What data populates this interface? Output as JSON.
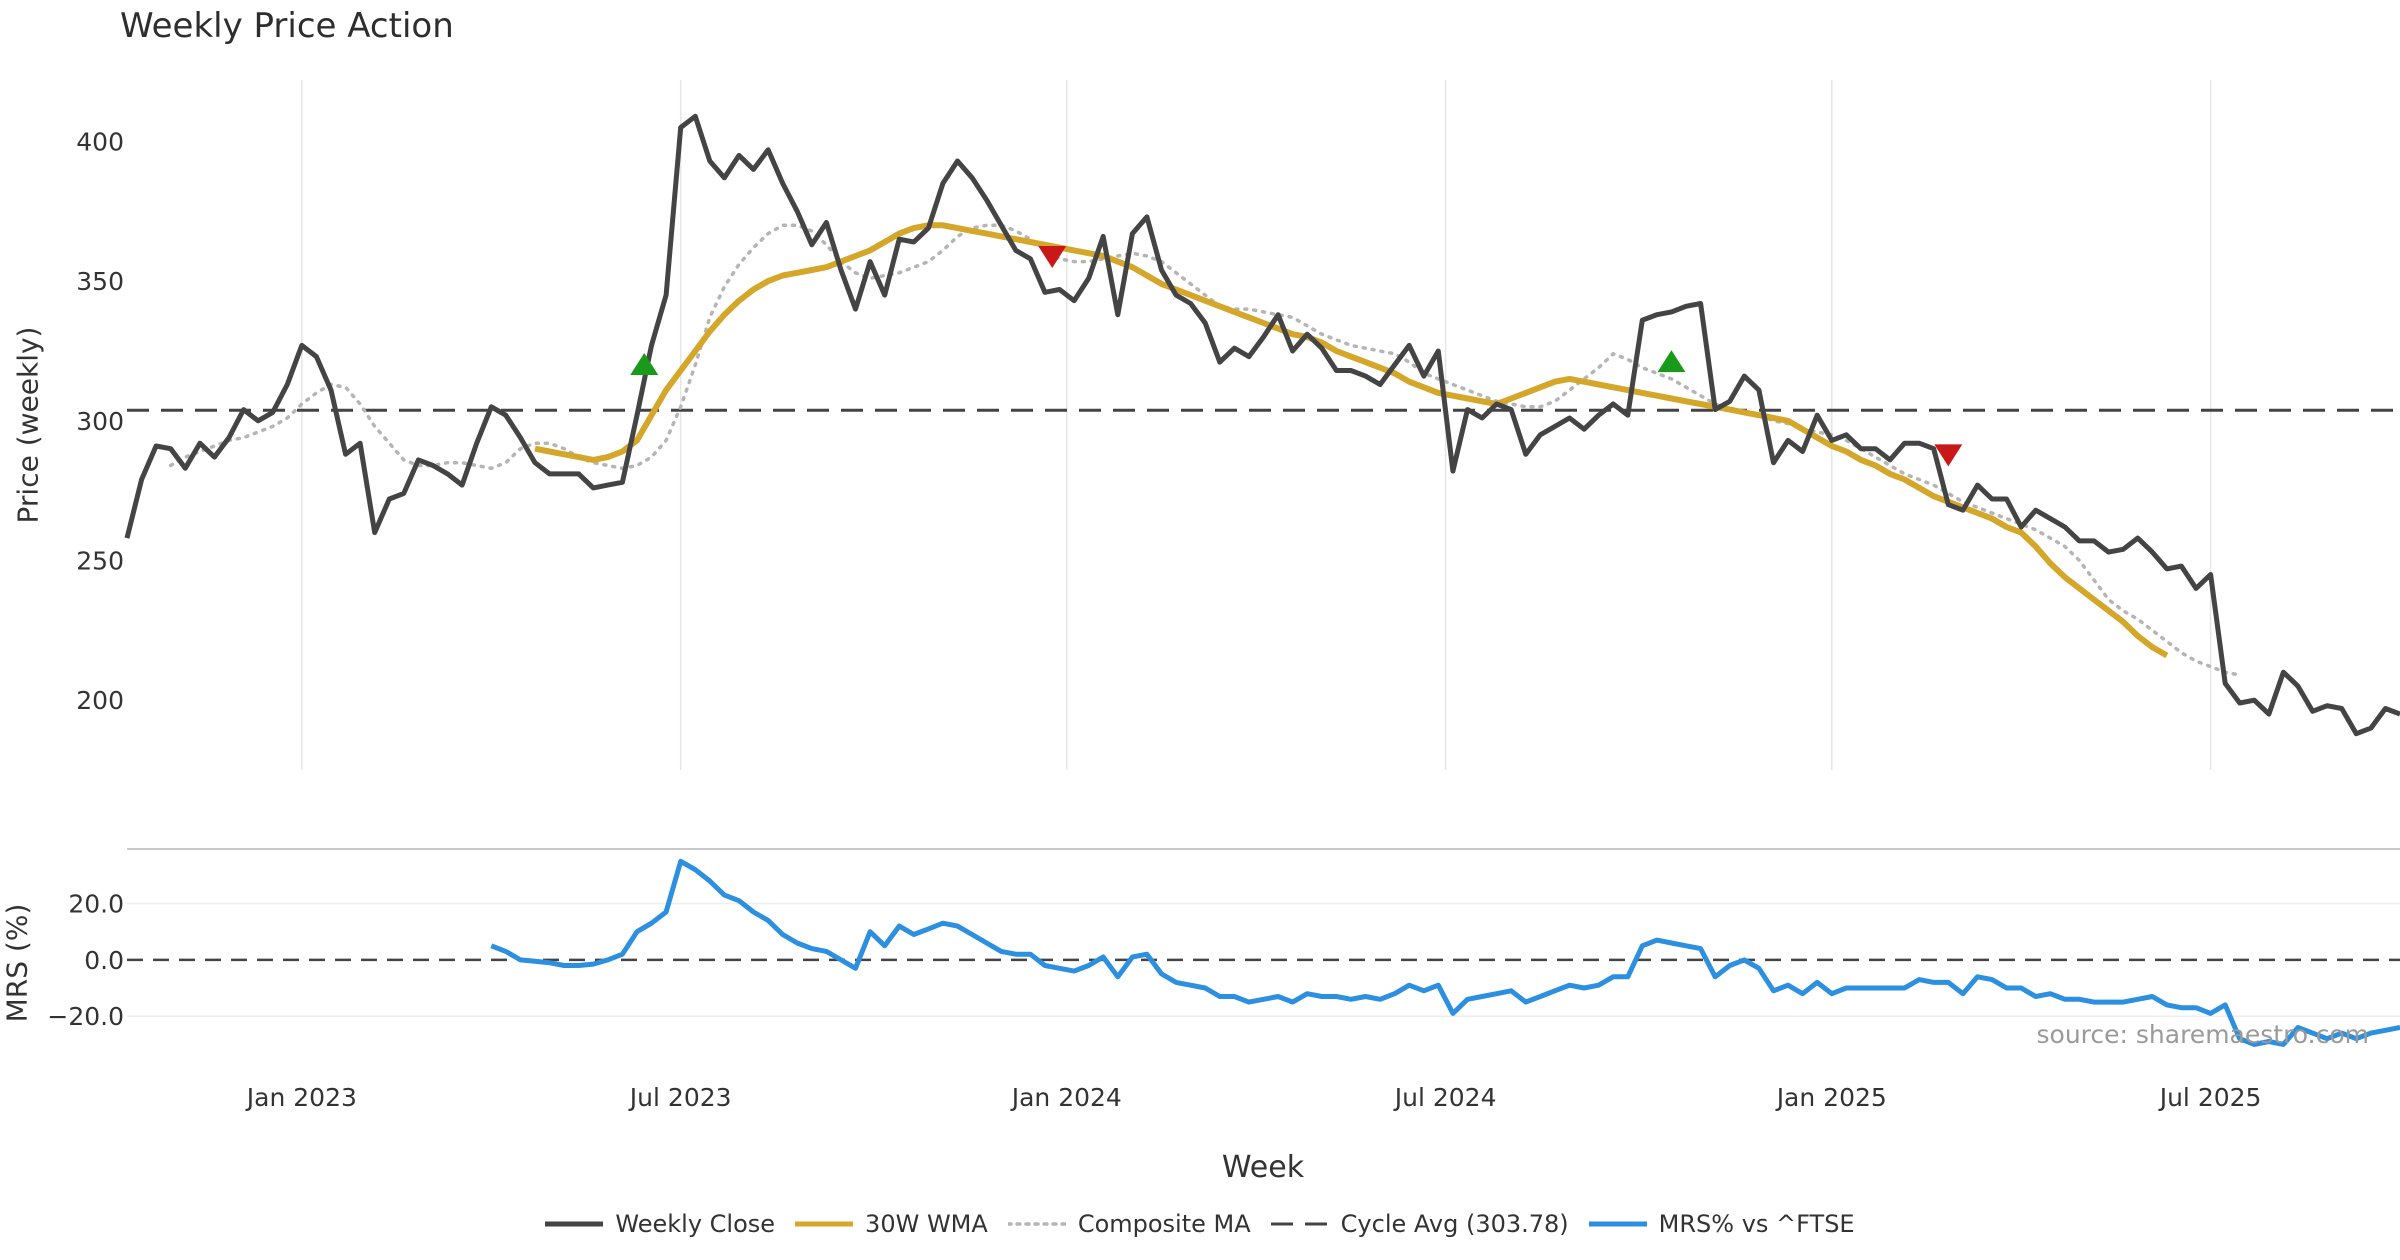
{
  "title": "Weekly Price Action",
  "source": "source: sharemaestro.com",
  "chart_data": {
    "type": "line",
    "title": "Weekly Price Action",
    "xlabel": "Week",
    "x_ticks": [
      {
        "label": "Jan 2023",
        "week": 12
      },
      {
        "label": "Jul 2023",
        "week": 38
      },
      {
        "label": "Jan 2024",
        "week": 64.5
      },
      {
        "label": "Jul 2024",
        "week": 90.5
      },
      {
        "label": "Jan 2025",
        "week": 117
      },
      {
        "label": "Jul 2025",
        "week": 143
      }
    ],
    "x_range": [
      0,
      156
    ],
    "price_panel": {
      "ylabel": "Price (weekly)",
      "ylim": [
        175,
        422
      ],
      "y_ticks": [
        200,
        250,
        300,
        350,
        400
      ],
      "cycle_avg": 303.78,
      "series": [
        {
          "name": "Weekly Close",
          "color": "#444444",
          "start_week": 0,
          "values": [
            258,
            279,
            291,
            290,
            283,
            292,
            287,
            294,
            304,
            300,
            303,
            313,
            327,
            323,
            311,
            288,
            292,
            260,
            272,
            274,
            286,
            284,
            281,
            277,
            292,
            305,
            302,
            294,
            285,
            281,
            281,
            281,
            276,
            277,
            278,
            302,
            327,
            345,
            405,
            409,
            393,
            387,
            395,
            390,
            397,
            385,
            375,
            363,
            371,
            354,
            340,
            357,
            345,
            365,
            364,
            369,
            385,
            393,
            387,
            379,
            370,
            361,
            358,
            346,
            347,
            343,
            351,
            366,
            338,
            367,
            373,
            354,
            345,
            342,
            335,
            321,
            326,
            323,
            330,
            338,
            325,
            331,
            326,
            318,
            318,
            316,
            313,
            320,
            327,
            316,
            325,
            282,
            304,
            301,
            306,
            304,
            288,
            295,
            298,
            301,
            297,
            302,
            306,
            302,
            336,
            338,
            339,
            341,
            342,
            304,
            307,
            316,
            311,
            285,
            293,
            289,
            302,
            293,
            295,
            290,
            290,
            286,
            292,
            292,
            290,
            270,
            268,
            277,
            272,
            272,
            262,
            268,
            265,
            262,
            257,
            257,
            253,
            254,
            258,
            253,
            247,
            248,
            240,
            245,
            206,
            199,
            200,
            195,
            210,
            205,
            196,
            198,
            197,
            188,
            190,
            197,
            195
          ]
        },
        {
          "name": "30W WMA",
          "color": "#D4A62A",
          "start_week": 28,
          "values": [
            290,
            289,
            288,
            287,
            286,
            287,
            289,
            293,
            302,
            311,
            318,
            325,
            332,
            338,
            343,
            347,
            350,
            352,
            353,
            354,
            355,
            357,
            359,
            361,
            364,
            367,
            369,
            370,
            370,
            369,
            368,
            367,
            366,
            365,
            364,
            363,
            362,
            361,
            360,
            359,
            357,
            355,
            352,
            349,
            347,
            345,
            343,
            341,
            339,
            337,
            335,
            333,
            331,
            330,
            328,
            325,
            323,
            321,
            319,
            317,
            314,
            312,
            310,
            309,
            308,
            307,
            306,
            308,
            310,
            312,
            314,
            315,
            314,
            313,
            312,
            311,
            310,
            309,
            308,
            307,
            306,
            305,
            304,
            303,
            302,
            301,
            300,
            297,
            294,
            291,
            289,
            286,
            284,
            281,
            279,
            276,
            273,
            271,
            269,
            267,
            265,
            262,
            260,
            255,
            249,
            244,
            240,
            236,
            232,
            228,
            223,
            219,
            216
          ]
        },
        {
          "name": "Composite MA",
          "color": "#b5b5b5",
          "start_week": 3,
          "values": [
            284,
            287,
            289,
            291,
            293,
            294,
            296,
            298,
            301,
            306,
            310,
            313,
            312,
            306,
            298,
            292,
            286,
            284,
            284,
            285,
            285,
            284,
            283,
            285,
            290,
            292,
            292,
            290,
            287,
            285,
            284,
            283,
            284,
            287,
            293,
            305,
            320,
            337,
            348,
            356,
            362,
            367,
            370,
            370,
            368,
            363,
            357,
            353,
            351,
            352,
            353,
            355,
            357,
            361,
            366,
            369,
            370,
            370,
            368,
            365,
            361,
            358,
            357,
            357,
            358,
            359,
            360,
            359,
            357,
            353,
            349,
            345,
            341,
            340,
            340,
            339,
            338,
            337,
            334,
            331,
            329,
            327,
            326,
            325,
            324,
            321,
            317,
            315,
            313,
            311,
            309,
            307,
            306,
            305,
            305,
            307,
            311,
            315,
            319,
            324,
            322,
            319,
            317,
            315,
            312,
            309,
            306,
            304,
            303,
            302,
            300,
            299,
            297,
            296,
            295,
            293,
            290,
            287,
            284,
            281,
            279,
            277,
            274,
            271,
            269,
            267,
            265,
            263,
            261,
            258,
            255,
            250,
            243,
            236,
            232,
            229,
            225,
            221,
            217,
            214,
            212,
            210,
            209
          ]
        }
      ],
      "signals": [
        {
          "type": "buy",
          "week": 35.5,
          "price": 320
        },
        {
          "type": "sell",
          "week": 63.5,
          "price": 359
        },
        {
          "type": "buy",
          "week": 106,
          "price": 321
        },
        {
          "type": "sell",
          "week": 125,
          "price": 288
        }
      ]
    },
    "mrs_panel": {
      "ylabel": "MRS (%)",
      "ylim": [
        -32,
        39
      ],
      "y_ticks": [
        20.0,
        0.0,
        -20.0
      ],
      "series": [
        {
          "name": "MRS% vs ^FTSE",
          "color": "#2C8FE0",
          "start_week": 25,
          "values": [
            5,
            3,
            0,
            -0.5,
            -1,
            -2,
            -2,
            -1.5,
            0,
            2,
            10,
            13,
            17,
            35,
            32,
            28,
            23,
            21,
            17,
            14,
            9,
            6,
            4,
            3,
            0,
            -3,
            10,
            5,
            12,
            9,
            11,
            13,
            12,
            9,
            6,
            3,
            2,
            2,
            -2,
            -3,
            -4,
            -2,
            1,
            -6,
            1,
            2,
            -5,
            -8,
            -9,
            -10,
            -13,
            -13,
            -15,
            -14,
            -13,
            -15,
            -12,
            -13,
            -13,
            -14,
            -13,
            -14,
            -12,
            -9,
            -11,
            -9,
            -19,
            -14,
            -13,
            -12,
            -11,
            -15,
            -13,
            -11,
            -9,
            -10,
            -9,
            -6,
            -6,
            5,
            7,
            6,
            5,
            4,
            -6,
            -2,
            0,
            -3,
            -11,
            -9,
            -12,
            -8,
            -12,
            -10,
            -10,
            -10,
            -10,
            -10,
            -7,
            -8,
            -8,
            -12,
            -6,
            -7,
            -10,
            -10,
            -13,
            -12,
            -14,
            -14,
            -15,
            -15,
            -15,
            -14,
            -13,
            -16,
            -17,
            -17,
            -19,
            -16,
            -28,
            -30,
            -29,
            -30,
            -24,
            -26,
            -28,
            -26,
            -28,
            -26,
            -25,
            -24
          ]
        }
      ]
    },
    "legend": [
      {
        "label": "Weekly Close",
        "style": "solid",
        "color": "#444444"
      },
      {
        "label": "30W WMA",
        "style": "solid",
        "color": "#D4A62A"
      },
      {
        "label": "Composite MA",
        "style": "dotted",
        "color": "#b5b5b5"
      },
      {
        "label": "Cycle Avg (303.78)",
        "style": "dashed",
        "color": "#444444"
      },
      {
        "label": "MRS% vs ^FTSE",
        "style": "solid",
        "color": "#2C8FE0"
      }
    ]
  }
}
